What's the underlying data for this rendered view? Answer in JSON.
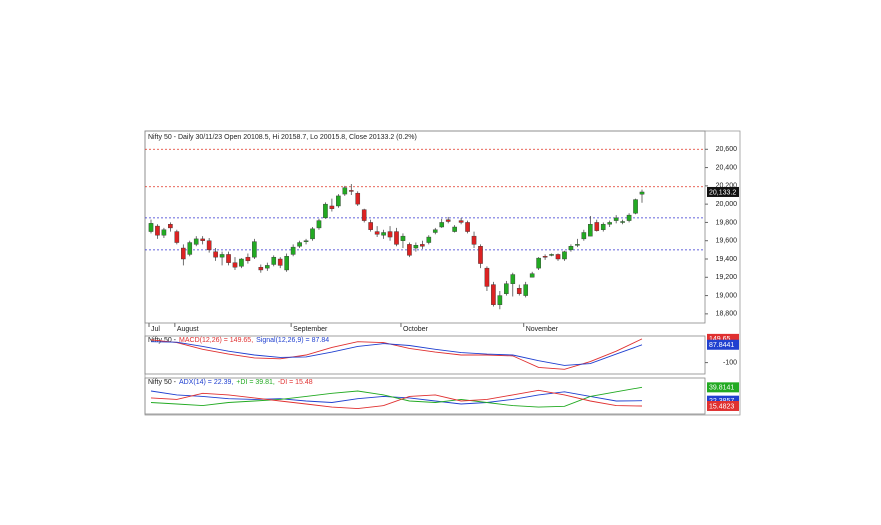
{
  "chart_data": [
    {
      "type": "candlestick",
      "title": "Nifty 50 - Daily 30/11/23 Open 20108.5, Hi 20158.7, Lo 20015.8, Close 20133.2 (0.2%)",
      "categories": [
        "Jul",
        null,
        null,
        null,
        "August",
        null,
        null,
        null,
        null,
        null,
        null,
        null,
        null,
        null,
        null,
        null,
        null,
        null,
        null,
        null,
        null,
        null,
        "September",
        null,
        null,
        null,
        null,
        null,
        null,
        null,
        null,
        null,
        null,
        null,
        null,
        null,
        null,
        null,
        null,
        "October",
        null,
        null,
        null,
        null,
        null,
        null,
        null,
        null,
        null,
        null,
        null,
        null,
        null,
        null,
        null,
        null,
        null,
        null,
        "November",
        null,
        null,
        null,
        null,
        null,
        null,
        null,
        null,
        null,
        null,
        null,
        null,
        null,
        null,
        null,
        null,
        null,
        null
      ],
      "ohlc": [
        [
          19700,
          19830,
          19680,
          19790
        ],
        [
          19760,
          19780,
          19620,
          19660
        ],
        [
          19660,
          19740,
          19630,
          19720
        ],
        [
          19780,
          19800,
          19700,
          19740
        ],
        [
          19700,
          19720,
          19560,
          19580
        ],
        [
          19520,
          19560,
          19330,
          19400
        ],
        [
          19450,
          19600,
          19430,
          19580
        ],
        [
          19560,
          19650,
          19540,
          19620
        ],
        [
          19620,
          19650,
          19560,
          19600
        ],
        [
          19600,
          19630,
          19470,
          19500
        ],
        [
          19480,
          19520,
          19380,
          19420
        ],
        [
          19420,
          19480,
          19330,
          19450
        ],
        [
          19450,
          19480,
          19330,
          19360
        ],
        [
          19360,
          19420,
          19280,
          19310
        ],
        [
          19320,
          19410,
          19300,
          19400
        ],
        [
          19420,
          19460,
          19350,
          19380
        ],
        [
          19420,
          19620,
          19400,
          19590
        ],
        [
          19310,
          19340,
          19250,
          19280
        ],
        [
          19300,
          19360,
          19270,
          19330
        ],
        [
          19340,
          19440,
          19320,
          19420
        ],
        [
          19400,
          19420,
          19300,
          19330
        ],
        [
          19280,
          19460,
          19260,
          19430
        ],
        [
          19450,
          19560,
          19430,
          19530
        ],
        [
          19540,
          19600,
          19520,
          19580
        ],
        [
          19590,
          19620,
          19560,
          19600
        ],
        [
          19620,
          19750,
          19600,
          19730
        ],
        [
          19740,
          19840,
          19720,
          19820
        ],
        [
          19850,
          20020,
          19840,
          20000
        ],
        [
          19980,
          20060,
          19920,
          19950
        ],
        [
          19980,
          20110,
          19960,
          20090
        ],
        [
          20110,
          20200,
          20090,
          20180
        ],
        [
          20150,
          20220,
          20100,
          20140
        ],
        [
          20120,
          20140,
          19980,
          20000
        ],
        [
          19940,
          19950,
          19800,
          19820
        ],
        [
          19800,
          19830,
          19700,
          19720
        ],
        [
          19700,
          19760,
          19640,
          19670
        ],
        [
          19660,
          19720,
          19620,
          19690
        ],
        [
          19700,
          19760,
          19600,
          19640
        ],
        [
          19700,
          19740,
          19540,
          19560
        ],
        [
          19600,
          19680,
          19520,
          19650
        ],
        [
          19560,
          19580,
          19420,
          19440
        ],
        [
          19520,
          19580,
          19480,
          19550
        ],
        [
          19560,
          19600,
          19510,
          19540
        ],
        [
          19580,
          19660,
          19560,
          19640
        ],
        [
          19690,
          19740,
          19670,
          19720
        ],
        [
          19750,
          19840,
          19740,
          19800
        ],
        [
          19830,
          19860,
          19790,
          19810
        ],
        [
          19700,
          19770,
          19690,
          19750
        ],
        [
          19820,
          19850,
          19780,
          19800
        ],
        [
          19800,
          19820,
          19680,
          19700
        ],
        [
          19650,
          19700,
          19520,
          19560
        ],
        [
          19540,
          19560,
          19300,
          19350
        ],
        [
          19300,
          19320,
          19050,
          19100
        ],
        [
          19120,
          19150,
          18880,
          18900
        ],
        [
          18900,
          19050,
          18850,
          19000
        ],
        [
          19020,
          19160,
          19000,
          19130
        ],
        [
          19130,
          19250,
          18990,
          19230
        ],
        [
          19080,
          19120,
          19000,
          19020
        ],
        [
          19000,
          19150,
          18980,
          19120
        ],
        [
          19200,
          19260,
          19200,
          19240
        ],
        [
          19300,
          19420,
          19280,
          19410
        ],
        [
          19430,
          19450,
          19390,
          19420
        ],
        [
          19440,
          19460,
          19430,
          19450
        ],
        [
          19450,
          19460,
          19380,
          19400
        ],
        [
          19400,
          19490,
          19380,
          19480
        ],
        [
          19500,
          19560,
          19480,
          19540
        ],
        [
          19550,
          19620,
          19530,
          19560
        ],
        [
          19620,
          19720,
          19600,
          19690
        ],
        [
          19650,
          19870,
          19650,
          19780
        ],
        [
          19800,
          19830,
          19700,
          19710
        ],
        [
          19720,
          19800,
          19700,
          19780
        ],
        [
          19780,
          19820,
          19750,
          19800
        ],
        [
          19820,
          19880,
          19790,
          19850
        ],
        [
          19800,
          19830,
          19780,
          19810
        ],
        [
          19820,
          19900,
          19800,
          19880
        ],
        [
          19900,
          20060,
          19890,
          20050
        ],
        [
          20108.5,
          20158.7,
          20015.8,
          20133.2
        ]
      ],
      "up_color": "#22aa22",
      "down_color": "#dd2222",
      "levels": [
        {
          "value": 20600,
          "color": "#e03020"
        },
        {
          "value": 20190,
          "color": "#e03020"
        },
        {
          "value": 19850,
          "color": "#3030d0"
        },
        {
          "value": 19500,
          "color": "#3030d0"
        }
      ],
      "last_label": "20,133.2",
      "ylim": [
        18700,
        20800
      ],
      "yticks": [
        {
          "value": 18800,
          "label": "18,800"
        },
        {
          "value": 19000,
          "label": "19,000"
        },
        {
          "value": 19200,
          "label": "19,200"
        },
        {
          "value": 19400,
          "label": "19,400"
        },
        {
          "value": 19600,
          "label": "19,600"
        },
        {
          "value": 19800,
          "label": "19,800"
        },
        {
          "value": 20000,
          "label": "20,000"
        },
        {
          "value": 20200,
          "label": "20,200"
        },
        {
          "value": 20400,
          "label": "20,400"
        },
        {
          "value": 20600,
          "label": "20,600"
        }
      ]
    },
    {
      "type": "line",
      "title": "Nifty 50 -",
      "x": [
        0,
        4,
        8,
        12,
        16,
        20,
        24,
        28,
        32,
        36,
        40,
        44,
        48,
        52,
        56,
        60,
        64,
        68,
        72,
        76
      ],
      "series": [
        {
          "name": "MACD(12,26) = 149.65,",
          "color": "#e03030",
          "box_label": "149.65",
          "values": [
            140,
            110,
            40,
            -10,
            -50,
            -60,
            -20,
            60,
            120,
            110,
            50,
            10,
            -20,
            -20,
            -30,
            -150,
            -170,
            -90,
            20,
            149.65
          ]
        },
        {
          "name": "Signal(12,26,9) = 87.84",
          "color": "#2040d0",
          "box_label": "87.8441",
          "values": [
            120,
            115,
            70,
            20,
            -20,
            -45,
            -40,
            10,
            70,
            100,
            80,
            40,
            5,
            -10,
            -20,
            -80,
            -130,
            -110,
            -10,
            87.84
          ]
        }
      ],
      "ylim": [
        -220,
        180
      ],
      "yticks": [
        -100
      ]
    },
    {
      "type": "line",
      "title": "Nifty 50 -",
      "x": [
        0,
        4,
        8,
        12,
        16,
        20,
        24,
        28,
        32,
        36,
        40,
        44,
        48,
        52,
        56,
        60,
        64,
        68,
        72,
        76
      ],
      "series": [
        {
          "name": "ADX(14) = 22.39,",
          "color": "#2040d0",
          "box_label": "22.3857",
          "values": [
            35,
            30,
            28,
            25,
            24,
            25,
            22,
            20,
            25,
            28,
            26,
            22,
            18,
            20,
            24,
            30,
            34,
            28,
            22,
            22.39
          ]
        },
        {
          "name": "+DI = 39.81,",
          "color": "#22aa22",
          "box_label": "39.8141",
          "values": [
            20,
            18,
            16,
            20,
            22,
            24,
            28,
            32,
            35,
            30,
            22,
            20,
            24,
            20,
            16,
            14,
            15,
            28,
            34,
            39.81
          ]
        },
        {
          "name": "-DI = 15.48",
          "color": "#e03030",
          "box_label": "15.4823",
          "values": [
            26,
            24,
            32,
            30,
            26,
            22,
            18,
            14,
            12,
            16,
            28,
            30,
            22,
            24,
            30,
            36,
            30,
            22,
            16,
            15.48
          ]
        }
      ],
      "ylim": [
        5,
        52
      ]
    }
  ]
}
